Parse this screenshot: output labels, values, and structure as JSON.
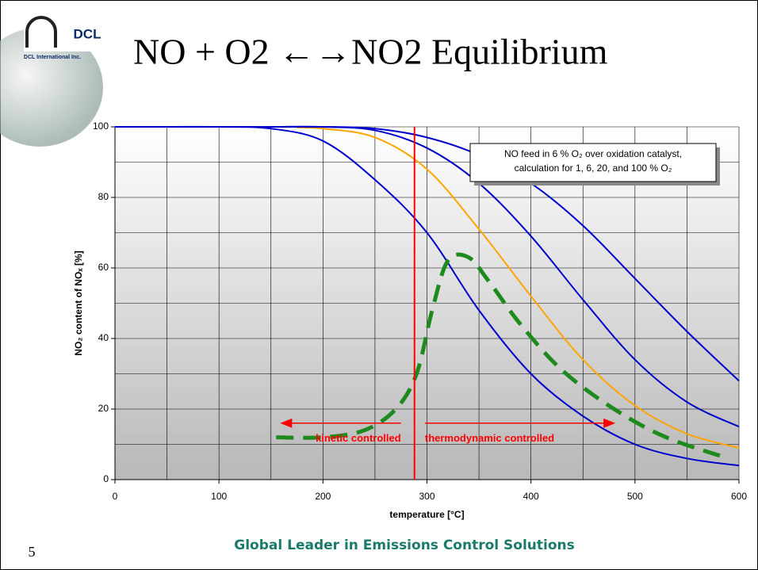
{
  "slide": {
    "title": "NO + O2 ←→NO2 Equilibrium",
    "logo": "DCL",
    "logo_sub": "DCL International Inc.",
    "footer": "Global Leader in Emissions Control Solutions",
    "page_number": "5"
  },
  "chart_data": {
    "type": "line",
    "xlabel": "temperature  [°C]",
    "ylabel": "NO₂ content of NOₓ  [%]",
    "xlim": [
      0,
      600
    ],
    "ylim": [
      0,
      100
    ],
    "xticks": [
      0,
      100,
      200,
      300,
      400,
      500,
      600
    ],
    "yticks": [
      0,
      20,
      40,
      60,
      80,
      100
    ],
    "xgrid": [
      0,
      50,
      100,
      150,
      200,
      250,
      300,
      350,
      400,
      450,
      500,
      550,
      600
    ],
    "ygrid": [
      0,
      10,
      20,
      30,
      40,
      50,
      60,
      70,
      80,
      90,
      100
    ],
    "grid": true,
    "series": [
      {
        "color": "#0000cc",
        "x": [
          0,
          50,
          100,
          150,
          200,
          250,
          300,
          350,
          400,
          450,
          500,
          550,
          600
        ],
        "values": [
          100,
          100,
          100,
          99.5,
          96,
          85,
          70,
          48,
          30,
          18,
          10,
          6,
          4
        ]
      },
      {
        "color": "#ffa500",
        "x": [
          175,
          200,
          250,
          300,
          350,
          400,
          450,
          500,
          550,
          600
        ],
        "values": [
          99.8,
          99.5,
          97,
          88,
          71,
          52,
          34,
          21,
          13,
          9
        ]
      },
      {
        "color": "#0000cc",
        "x": [
          0,
          50,
          100,
          150,
          200,
          250,
          300,
          350,
          400,
          450,
          500,
          550,
          600
        ],
        "values": [
          100,
          100,
          100,
          100,
          100,
          99,
          94,
          84,
          69,
          51,
          34,
          22,
          15
        ]
      },
      {
        "color": "#0000cc",
        "x": [
          0,
          50,
          100,
          150,
          200,
          250,
          300,
          350,
          400,
          450,
          500,
          550,
          600
        ],
        "values": [
          100,
          100,
          100,
          100,
          100,
          99.5,
          97,
          92,
          84,
          72,
          57,
          42,
          28
        ]
      },
      {
        "color": "#1e8a1e",
        "dashed": true,
        "x": [
          155,
          200,
          240,
          270,
          290,
          305,
          320,
          340,
          360,
          390,
          430,
          480,
          530,
          590
        ],
        "values": [
          12,
          12,
          14,
          20,
          30,
          48,
          62,
          63,
          56,
          44,
          31,
          20,
          12,
          6
        ]
      }
    ],
    "vline": {
      "x": 288,
      "color": "#ff0000"
    },
    "annotations": [
      {
        "text": "kinetic controlled",
        "from": 275,
        "to": 160,
        "y": 16
      },
      {
        "text": "thermodynamic controlled",
        "from": 298,
        "to": 480,
        "y": 16
      }
    ],
    "note": [
      "NO feed in 6 % O₂ over oxidation catalyst,",
      "calculation for 1, 6, 20, and 100 % O₂"
    ]
  }
}
